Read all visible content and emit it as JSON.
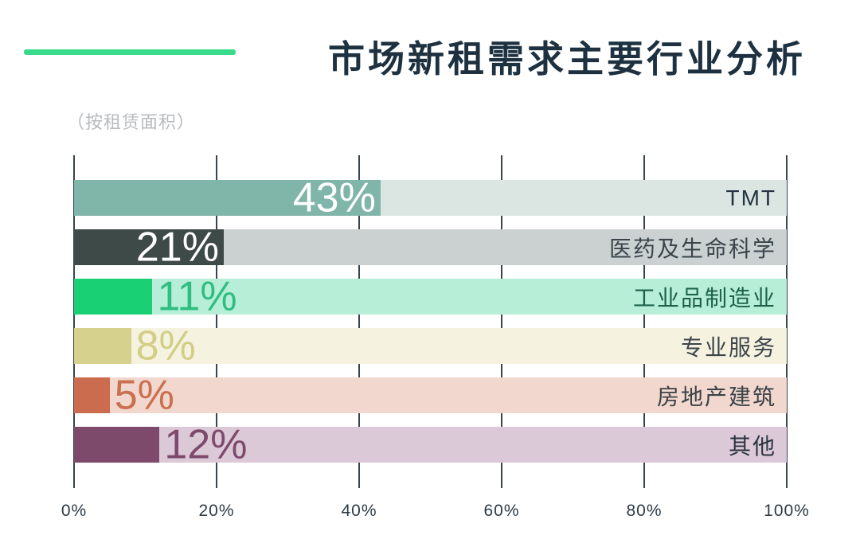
{
  "header": {
    "title": "市场新租需求主要行业分析",
    "subtitle": "（按租赁面积）",
    "accent_color": "#38da8b"
  },
  "chart_data": {
    "type": "bar",
    "orientation": "horizontal",
    "title": "市场新租需求主要行业分析",
    "subtitle": "（按租赁面积）",
    "unit": "%",
    "xlim": [
      0,
      100
    ],
    "x_ticks": [
      "0%",
      "20%",
      "40%",
      "60%",
      "80%",
      "100%"
    ],
    "grid": "vertical",
    "legend": "none",
    "categories": [
      "TMT",
      "医药及生命科学",
      "工业品制造业",
      "专业服务",
      "房地产建筑",
      "其他"
    ],
    "values": [
      43,
      21,
      11,
      8,
      5,
      12
    ],
    "rows": [
      {
        "label": "TMT",
        "value": 43,
        "value_label": "43%",
        "fill_color": "#80b5a9",
        "track_color": "#dbe6e2",
        "value_color": "#ffffff",
        "label_color": "#24333f"
      },
      {
        "label": "医药及生命科学",
        "value": 21,
        "value_label": "21%",
        "fill_color": "#3e4a48",
        "track_color": "#cbd1d0",
        "value_color": "#ffffff",
        "label_color": "#3a454b"
      },
      {
        "label": "工业品制造业",
        "value": 11,
        "value_label": "11%",
        "fill_color": "#19d074",
        "track_color": "#b7eed8",
        "value_color": "#2fbe81",
        "label_color": "#1d6049"
      },
      {
        "label": "专业服务",
        "value": 8,
        "value_label": "8%",
        "fill_color": "#d6d28d",
        "track_color": "#f5f2e0",
        "value_color": "#d2ce84",
        "label_color": "#3d454a"
      },
      {
        "label": "房地产建筑",
        "value": 5,
        "value_label": "5%",
        "fill_color": "#cb6c4e",
        "track_color": "#f1d7cd",
        "value_color": "#c8704f",
        "label_color": "#3b4248"
      },
      {
        "label": "其他",
        "value": 12,
        "value_label": "12%",
        "fill_color": "#7e4a6c",
        "track_color": "#dcc9d8",
        "value_color": "#7d4a6c",
        "label_color": "#2b3440"
      }
    ]
  }
}
